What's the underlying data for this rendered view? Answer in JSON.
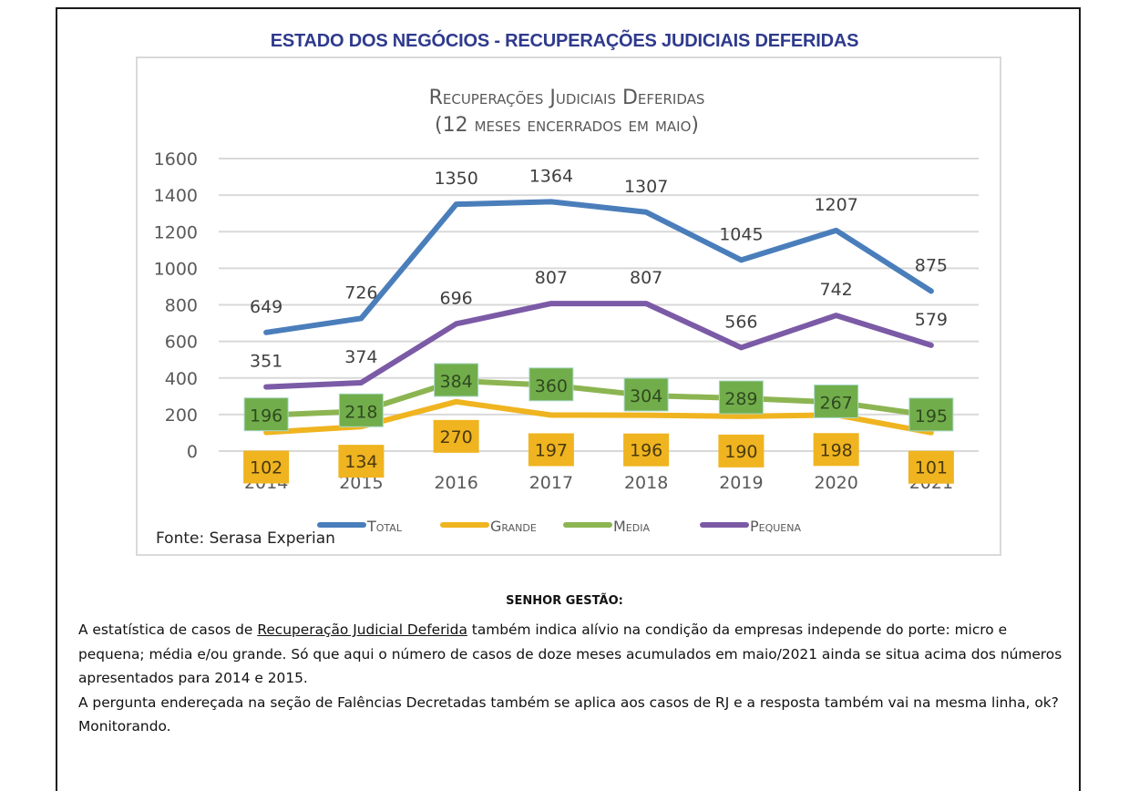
{
  "page": {
    "title": "ESTADO DOS NEGÓCIOS - RECUPERAÇÕES JUDICIAIS DEFERIDAS"
  },
  "chart_data": {
    "type": "line",
    "title": "Recuperações Judiciais Deferidas",
    "subtitle": "(12 meses encerrados em maio)",
    "categories": [
      "2014",
      "2015",
      "2016",
      "2017",
      "2018",
      "2019",
      "2020",
      "2021"
    ],
    "series": [
      {
        "name": "Total",
        "color": "#4a7ebb",
        "values": [
          649,
          726,
          1350,
          1364,
          1307,
          1045,
          1207,
          875
        ],
        "label_style": "plain"
      },
      {
        "name": "Grande",
        "color": "#efb41f",
        "values": [
          102,
          134,
          270,
          197,
          196,
          190,
          198,
          101
        ],
        "label_style": "box-below"
      },
      {
        "name": "Media",
        "color": "#8cb552",
        "label_box_color": "#72ad4b",
        "values": [
          196,
          218,
          384,
          360,
          304,
          289,
          267,
          195
        ],
        "label_style": "box-center"
      },
      {
        "name": "Pequena",
        "color": "#7b5aa6",
        "values": [
          351,
          374,
          696,
          807,
          807,
          566,
          742,
          579
        ],
        "label_style": "plain"
      }
    ],
    "ylim": [
      0,
      1600
    ],
    "yticks": [
      "0",
      "200",
      "400",
      "600",
      "800",
      "1000",
      "1200",
      "1400",
      "1600"
    ],
    "xlabel": "",
    "ylabel": "",
    "grid": true,
    "legend": "bottom",
    "source": "Fonte: Serasa Experian"
  },
  "commentary": {
    "heading": "SENHOR GESTÃO:",
    "p1_before": "A estatística de casos de ",
    "p1_link": "Recuperação Judicial Deferida",
    "p1_after": " também indica alívio na condição da empresas independe do porte: micro e pequena; média e/ou grande. Só que aqui o número de casos de doze meses acumulados em maio/2021 ainda se situa acima dos números apresentados para 2014 e 2015.",
    "p2": "A pergunta endereçada na seção de Falências Decretadas também se aplica aos casos de RJ e a resposta também vai na mesma linha, ok?",
    "p3": "Monitorando."
  }
}
